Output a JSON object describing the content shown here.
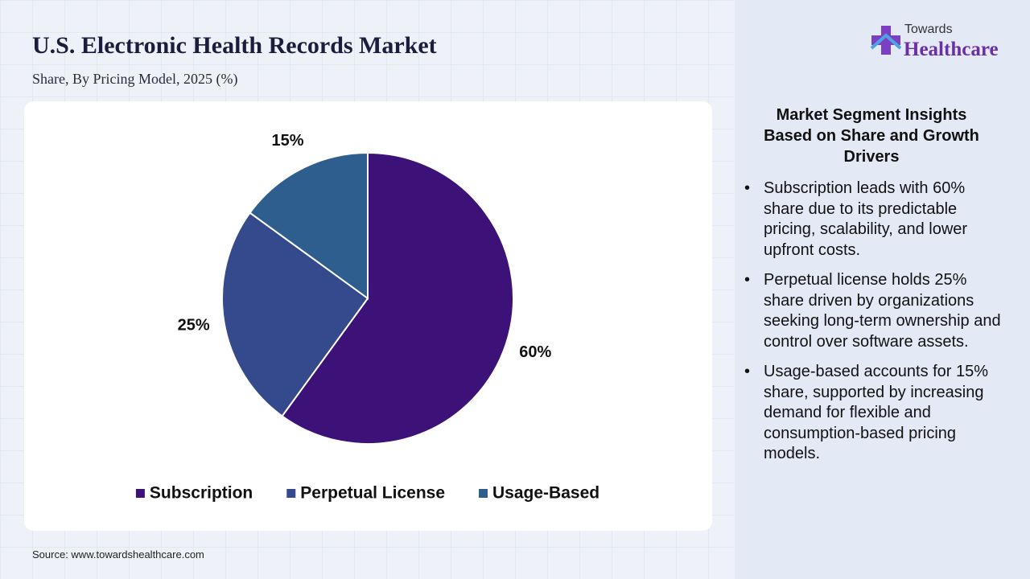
{
  "chart_data": {
    "type": "pie",
    "title": "U.S. Electronic Health Records Market",
    "subtitle": "Share, By Pricing Model, 2025 (%)",
    "categories": [
      "Subscription",
      "Perpetual License",
      "Usage-Based"
    ],
    "values": [
      60,
      25,
      15
    ],
    "value_labels": [
      "60%",
      "25%",
      "15%"
    ],
    "colors": [
      "#3d1278",
      "#354a8c",
      "#2e5e8e"
    ]
  },
  "source": "Source: www.towardshealthcare.com",
  "logo": {
    "top": "Towards",
    "bottom": "Healthcare"
  },
  "insights": {
    "title": "Market Segment Insights Based on Share and Growth Drivers",
    "bullets": [
      "Subscription leads with 60% share due to its predictable pricing, scalability, and lower upfront costs.",
      "Perpetual license holds 25% share driven by organizations seeking long-term ownership and control over software assets.",
      "Usage-based accounts for 15% share, supported by increasing demand for flexible and consumption-based pricing models."
    ]
  }
}
